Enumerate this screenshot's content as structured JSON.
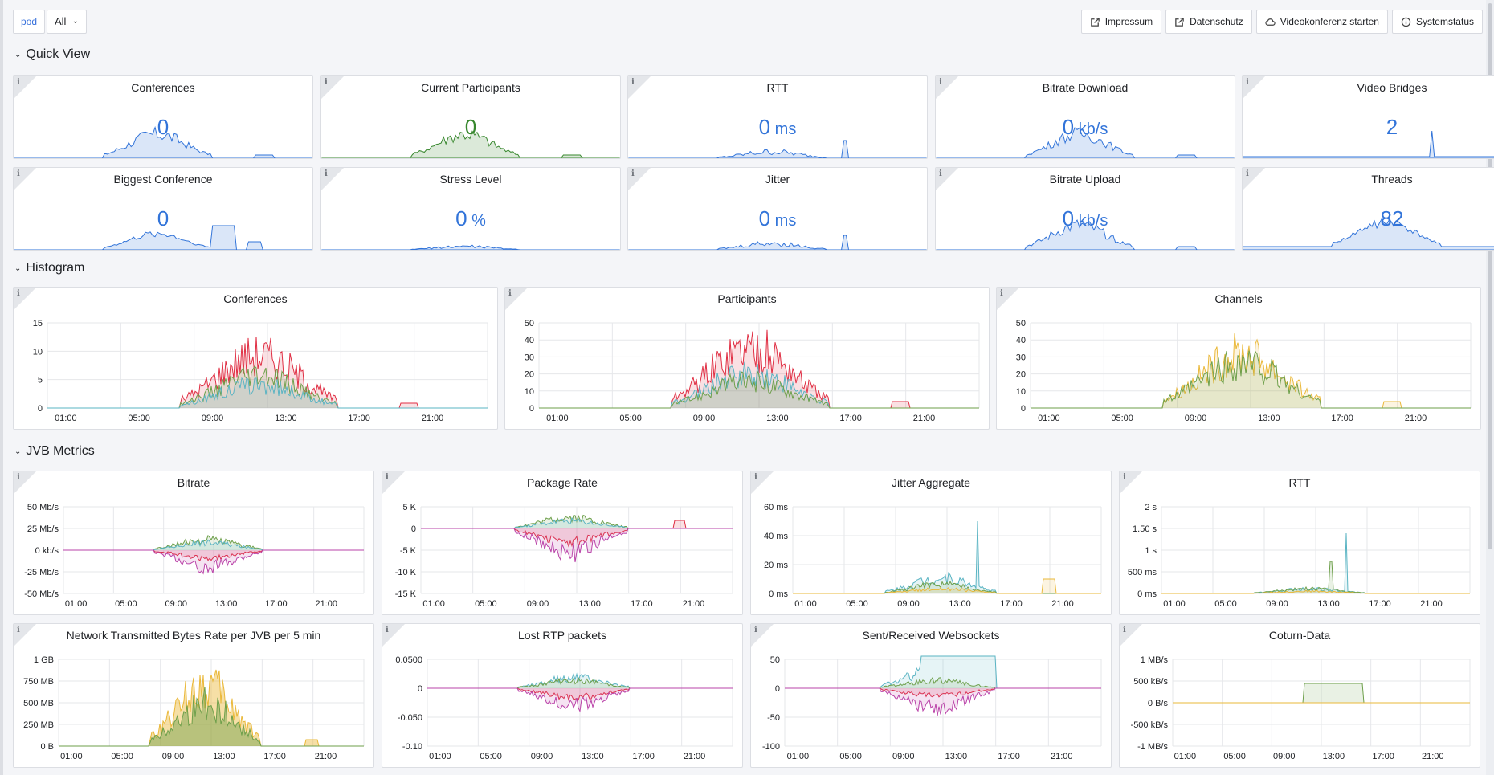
{
  "topbar": {
    "var_label": "pod",
    "var_value": "All",
    "links": [
      {
        "label": "Impressum",
        "icon": "external-link-icon"
      },
      {
        "label": "Datenschutz",
        "icon": "external-link-icon"
      },
      {
        "label": "Videokonferenz starten",
        "icon": "cloud-icon"
      },
      {
        "label": "Systemstatus",
        "icon": "info-icon"
      }
    ]
  },
  "rows": {
    "quick_view": "Quick View",
    "histogram": "Histogram",
    "jvb_metrics": "JVB Metrics"
  },
  "stats": [
    {
      "title": "Conferences",
      "value": "0",
      "unit": "",
      "color": "#3274d9"
    },
    {
      "title": "Current Participants",
      "value": "0",
      "unit": "",
      "color": "#37872d"
    },
    {
      "title": "RTT",
      "value": "0",
      "unit": "ms",
      "color": "#3274d9"
    },
    {
      "title": "Bitrate Download",
      "value": "0",
      "unit": "kb/s",
      "color": "#3274d9"
    },
    {
      "title": "Video Bridges",
      "value": "2",
      "unit": "",
      "color": "#3274d9"
    },
    {
      "title": "Biggest Conference",
      "value": "0",
      "unit": "",
      "color": "#3274d9"
    },
    {
      "title": "Stress Level",
      "value": "0",
      "unit": "%",
      "color": "#3274d9"
    },
    {
      "title": "Jitter",
      "value": "0",
      "unit": "ms",
      "color": "#3274d9"
    },
    {
      "title": "Bitrate Upload",
      "value": "0",
      "unit": "kb/s",
      "color": "#3274d9"
    },
    {
      "title": "Threads",
      "value": "82",
      "unit": "",
      "color": "#3274d9"
    }
  ],
  "x_ticks": [
    "01:00",
    "05:00",
    "09:00",
    "13:00",
    "17:00",
    "21:00"
  ],
  "charts": [
    {
      "title": "Conferences",
      "y_ticks": [
        "15",
        "10",
        "5",
        "0"
      ],
      "series_colors": [
        "#e02f44",
        "#6d9f4a",
        "#5ab4c3"
      ]
    },
    {
      "title": "Participants",
      "y_ticks": [
        "50",
        "40",
        "30",
        "20",
        "10",
        "0"
      ],
      "series_colors": [
        "#e02f44",
        "#5ab4c3",
        "#6d9f4a"
      ]
    },
    {
      "title": "Channels",
      "y_ticks": [
        "50",
        "40",
        "30",
        "20",
        "10",
        "0"
      ],
      "series_colors": [
        "#eab839",
        "#6d9f4a"
      ]
    },
    {
      "title": "Bitrate",
      "y_ticks": [
        "50 Mb/s",
        "25 Mb/s",
        "0 kb/s",
        "-25 Mb/s",
        "-50 Mb/s"
      ],
      "series_colors": [
        "#6d9f4a",
        "#5ab4c3",
        "#e02f44",
        "#ba43a9"
      ]
    },
    {
      "title": "Package Rate",
      "y_ticks": [
        "5 K",
        "0",
        "-5 K",
        "-10 K",
        "-15 K"
      ],
      "series_colors": [
        "#6d9f4a",
        "#5ab4c3",
        "#e02f44",
        "#ba43a9"
      ]
    },
    {
      "title": "Jitter Aggregate",
      "y_ticks": [
        "60 ms",
        "40 ms",
        "20 ms",
        "0 ms"
      ],
      "series_colors": [
        "#5ab4c3",
        "#6d9f4a",
        "#eab839"
      ]
    },
    {
      "title": "RTT",
      "y_ticks": [
        "2 s",
        "1.50 s",
        "1 s",
        "500 ms",
        "0 ms"
      ],
      "series_colors": [
        "#5ab4c3",
        "#6d9f4a",
        "#eab839"
      ]
    },
    {
      "title": "Network Transmitted Bytes Rate per JVB per 5 min",
      "y_ticks": [
        "1 GB",
        "750 MB",
        "500 MB",
        "250 MB",
        "0 B"
      ],
      "series_colors": [
        "#eab839",
        "#6d9f4a"
      ]
    },
    {
      "title": "Lost RTP packets",
      "y_ticks": [
        "0.0500",
        "0",
        "-0.050",
        "-0.10"
      ],
      "series_colors": [
        "#5ab4c3",
        "#6d9f4a",
        "#e02f44",
        "#ba43a9"
      ]
    },
    {
      "title": "Sent/Received Websockets",
      "y_ticks": [
        "50",
        "0",
        "-50",
        "-100"
      ],
      "series_colors": [
        "#5ab4c3",
        "#6d9f4a",
        "#e02f44",
        "#ba43a9"
      ]
    },
    {
      "title": "Coturn-Data",
      "y_ticks": [
        "1 MB/s",
        "500 kB/s",
        "0 B/s",
        "-500 kB/s",
        "-1 MB/s"
      ],
      "series_colors": [
        "#6d9f4a",
        "#eab839"
      ]
    }
  ]
}
